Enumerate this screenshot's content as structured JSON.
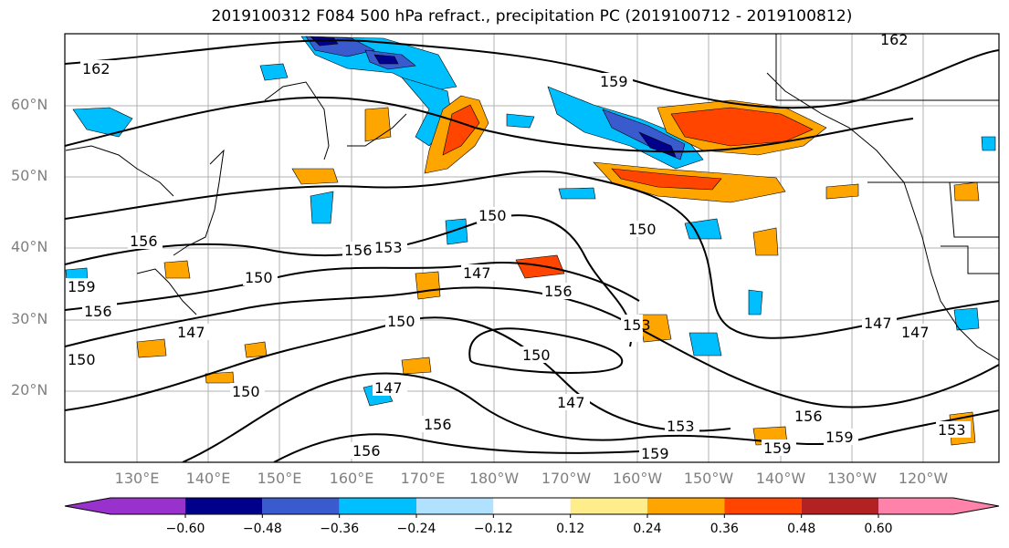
{
  "title": "2019100312 F084 500 hPa refract., precipitation PC (2019100712 - 2019100812)",
  "lat_labels": [
    "60°N",
    "50°N",
    "40°N",
    "30°N",
    "20°N"
  ],
  "lon_labels": [
    "130°E",
    "140°E",
    "150°E",
    "160°E",
    "170°E",
    "180°W",
    "170°W",
    "160°W",
    "150°W",
    "140°W",
    "130°W",
    "120°W"
  ],
  "contour_labels": [
    "162",
    "159",
    "156",
    "153",
    "150",
    "147"
  ],
  "colorbar": {
    "tick_labels": [
      "−0.60",
      "−0.48",
      "−0.36",
      "−0.24",
      "−0.12",
      "0.12",
      "0.24",
      "0.36",
      "0.48",
      "0.60"
    ],
    "colors": [
      "#9932cc",
      "#00008b",
      "#3a5bcd",
      "#00bfff",
      "#b0e2ff",
      "#ffffff",
      "#ffec8b",
      "#ffa500",
      "#ff4500",
      "#b22222",
      "#ff82ab"
    ]
  },
  "colors": {
    "negative_fill": "#00bfff",
    "positive_fill": "#ffa500",
    "grid": "#b0b0b0"
  }
}
